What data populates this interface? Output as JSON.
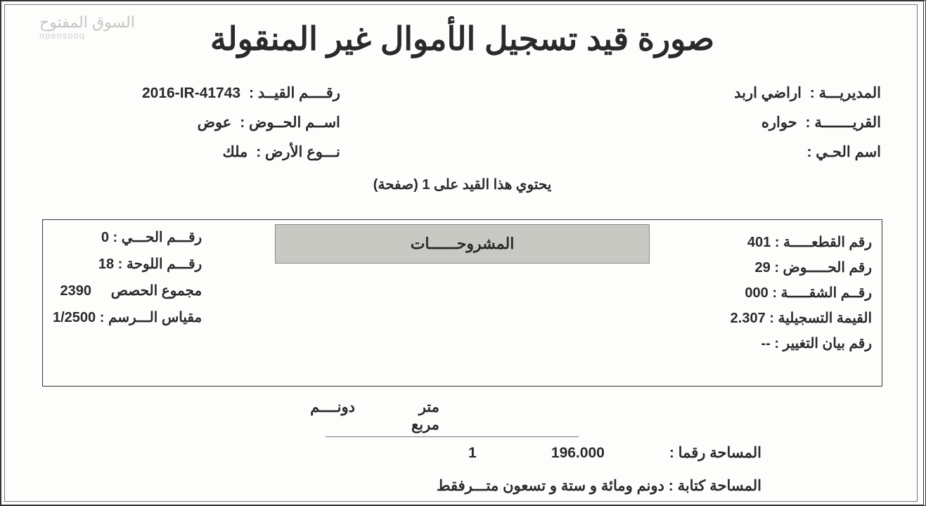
{
  "watermark": {
    "line1": "السوق المفتوح",
    "line2": "opensooq"
  },
  "title": "صورة قيد تسجيل الأموال غير المنقولة",
  "meta_right": {
    "directorate_label": "المديريـــة :",
    "directorate_value": "اراضي اربد",
    "village_label": "القريـــــــة :",
    "village_value": "حواره",
    "district_label": "اسم الحـي :",
    "district_value": ""
  },
  "meta_left": {
    "reg_no_label": "رقــــم القيــد :",
    "reg_no_value": "2016-IR-41743",
    "basin_label": "اســم الحــوض :",
    "basin_value": "عوض",
    "land_type_label": "نـــوع الأرض :",
    "land_type_value": "ملك"
  },
  "pages_line": "يحتوي هذا القيد على   1   (صفحة)",
  "box": {
    "explanations_title": "المشروحــــــات",
    "right": {
      "parcel_label": "رقم القطعـــــة :",
      "parcel_value": "401",
      "basin_no_label": "رقم الحـــــوض :",
      "basin_no_value": "29",
      "apt_label": "رقــم الشقـــــة :",
      "apt_value": "000",
      "reg_val_label": "القيمة التسجيلية :",
      "reg_val_value": "2.307",
      "change_label": "رقم بيان التغيير :",
      "change_value": "--"
    },
    "left": {
      "district_no_label": "رقـــم الحـــي :",
      "district_no_value": "0",
      "sheet_label": "رقـــم اللوحة :",
      "sheet_value": "18",
      "shares_label": "مجموع الحصص",
      "shares_value": "2390",
      "scale_label": "مقياس الـــرسم :",
      "scale_value": "1/2500"
    }
  },
  "area": {
    "header_m2": "متر مربع",
    "header_dunum": "دونــــم",
    "number_label": "المساحة رقما  :",
    "number_m2": "196.000",
    "number_dunum": "1",
    "words_label": "المساحة كتابة :",
    "words_value": "دونم  ومائة  و ستة  و  تسعون  متـــرفقط"
  },
  "style": {
    "page_bg": "#fdfdfc",
    "text_color": "#2a2a2a",
    "band_bg": "#c9c9c3",
    "title_fontsize": 46,
    "body_fontsize": 21
  }
}
